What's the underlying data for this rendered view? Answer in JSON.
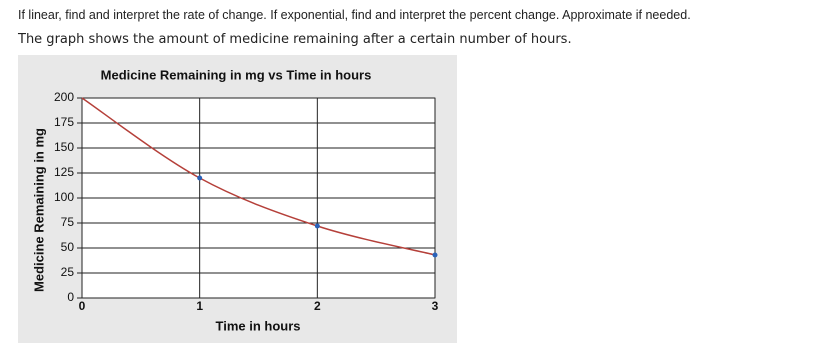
{
  "text": {
    "instructions": "If linear, find and interpret the rate of change.  If exponential, find and interpret the percent change.  Approximate if needed.",
    "prompt": "The graph shows the amount of medicine remaining after a certain number of hours."
  },
  "chart_data": {
    "type": "line",
    "title": "Medicine Remaining in mg vs Time in hours",
    "x_label": "Time in hours",
    "y_label": "Medicine Remaining in mg",
    "x": [
      0,
      1,
      2,
      3
    ],
    "series": [
      {
        "color": "#b5403a",
        "marker_color": "#2a62b8",
        "values": [
          200,
          120,
          72,
          43
        ]
      }
    ],
    "xlim": [
      0,
      3
    ],
    "xticks": [
      0,
      1,
      2,
      3
    ],
    "ylim": [
      0,
      200
    ],
    "yticks": [
      0,
      25,
      50,
      75,
      100,
      125,
      150,
      175,
      200
    ],
    "grid": true
  }
}
